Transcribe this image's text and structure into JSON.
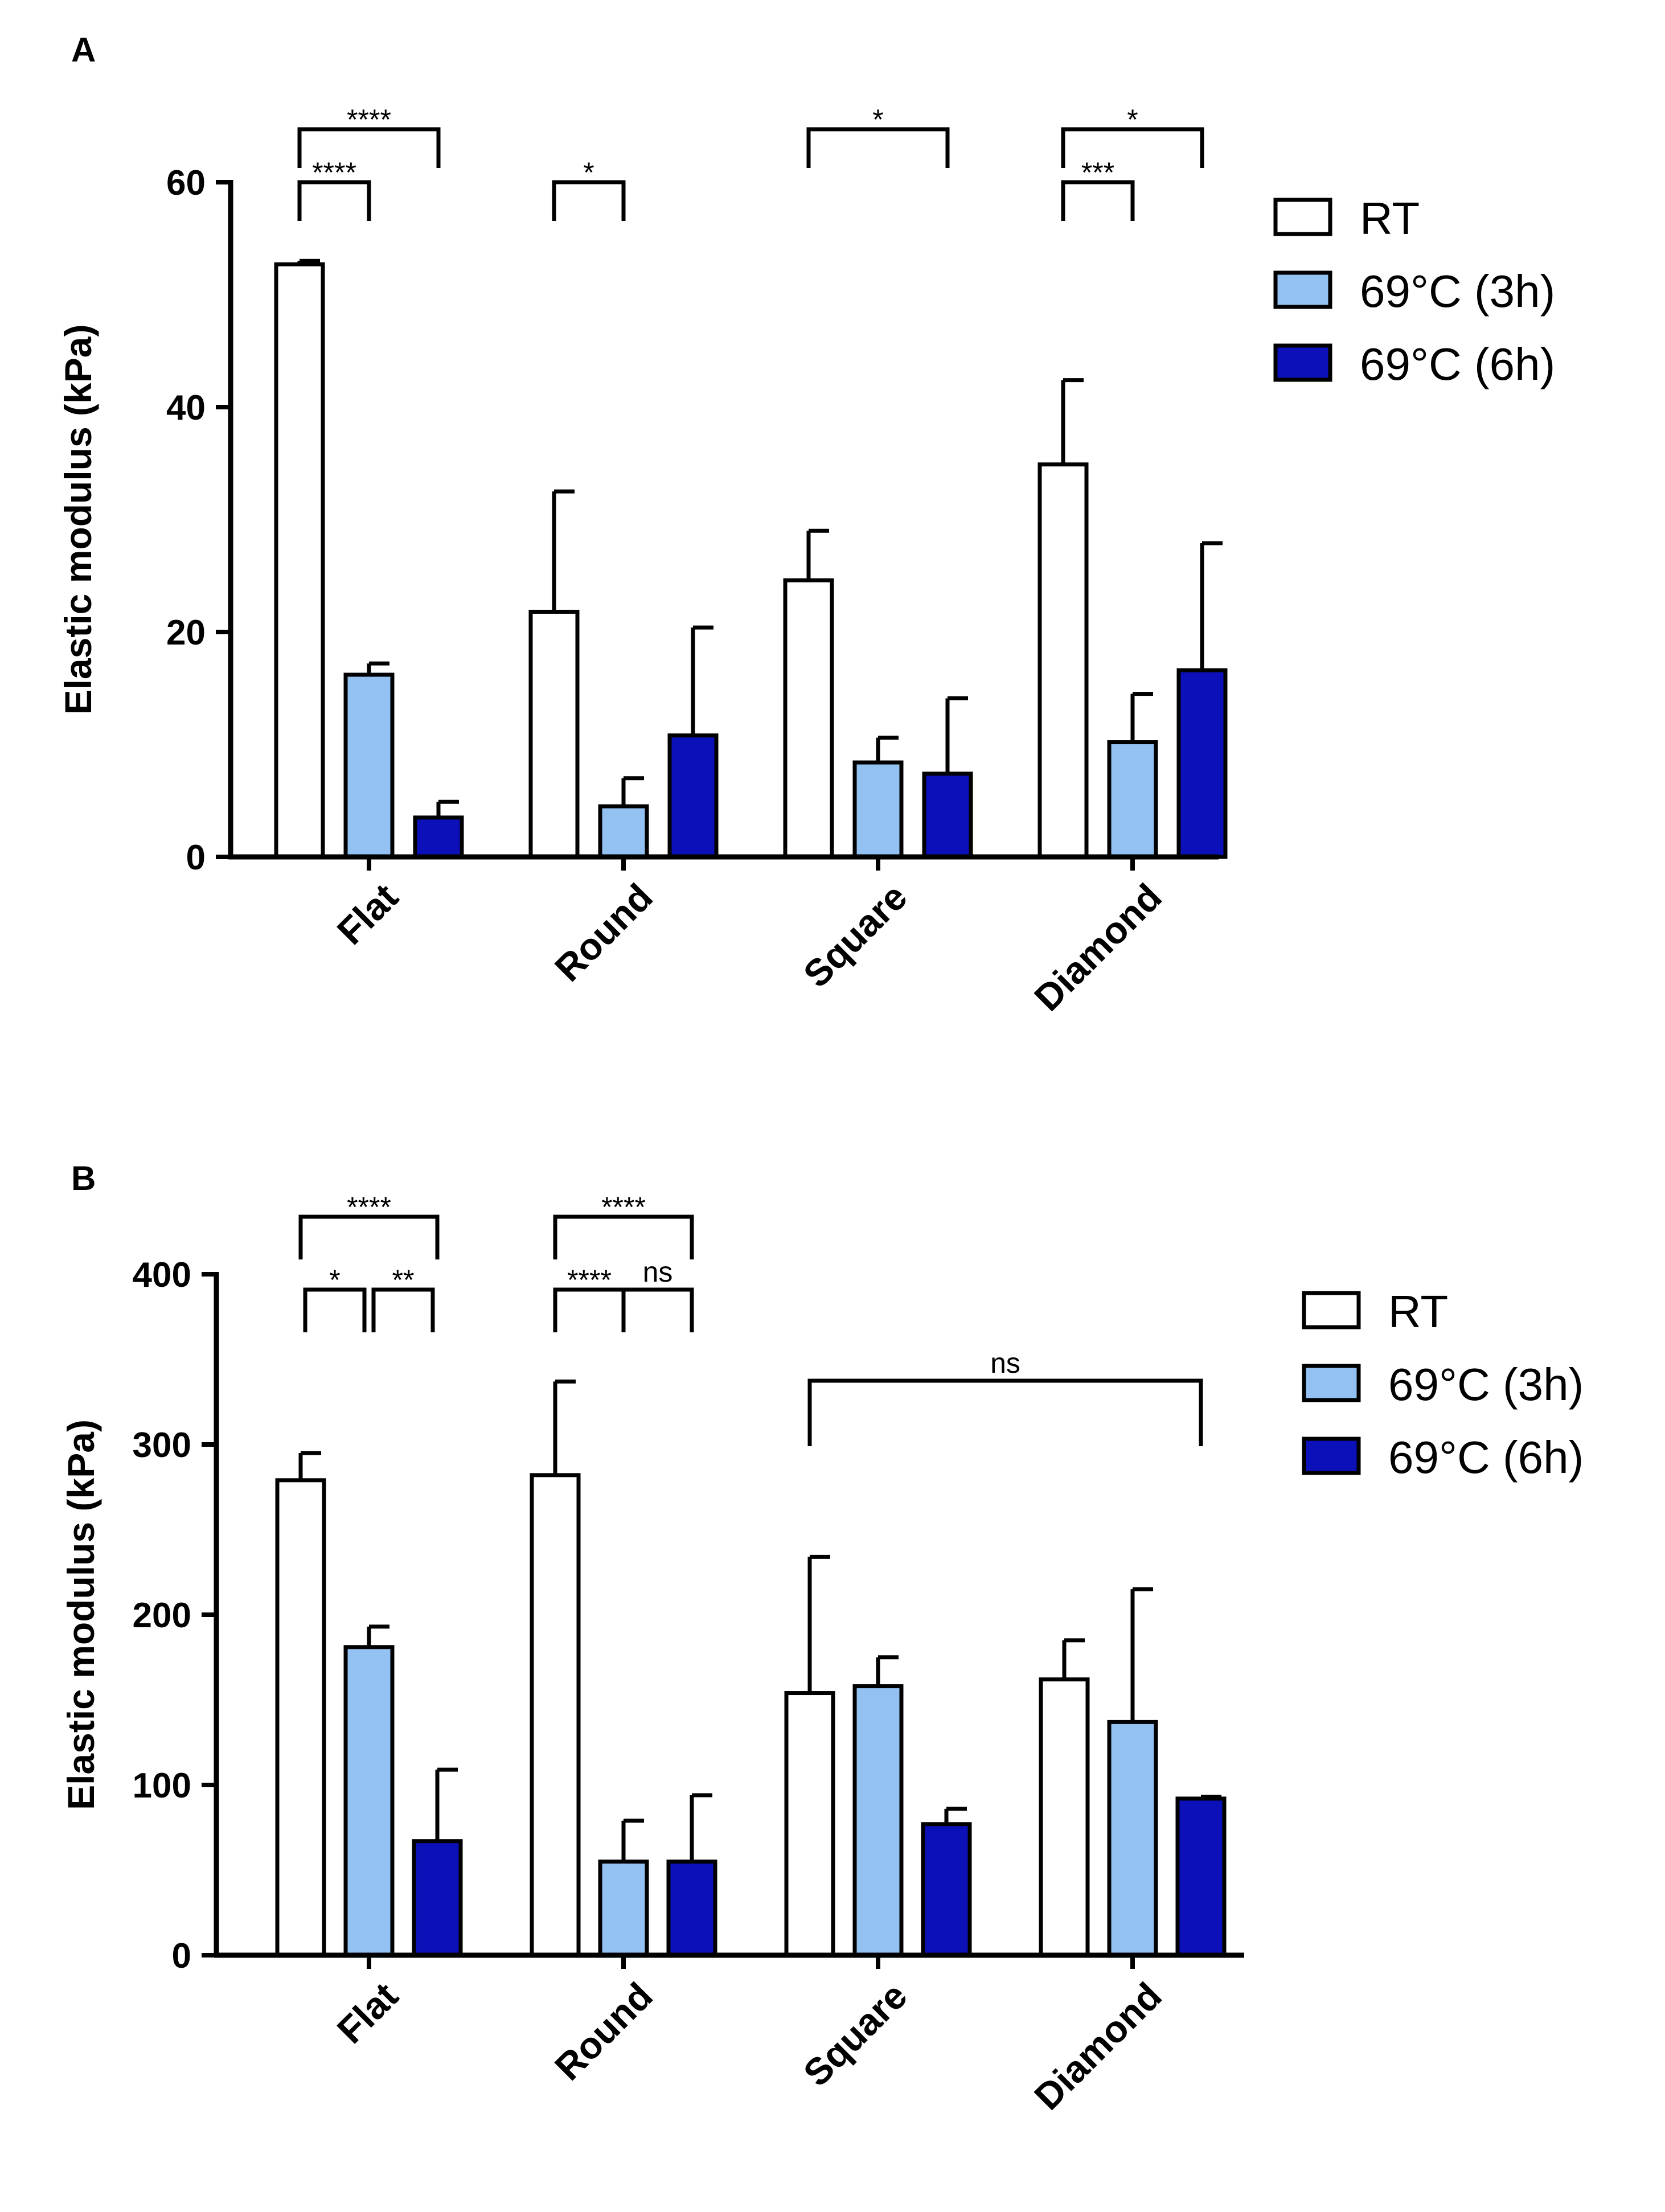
{
  "panels": [
    {
      "letter": "A",
      "ylabel": "Elastic modulus (kPa)",
      "legend": [
        {
          "label": "RT",
          "color": "#ffffff"
        },
        {
          "label": "69°C (3h)",
          "color": "#92c1f2"
        },
        {
          "label": "69°C (6h)",
          "color": "#0c10b8"
        }
      ],
      "significance": [
        {
          "label": "****",
          "group": 0,
          "from": 0,
          "to": 2,
          "tier": 2
        },
        {
          "label": "****",
          "group": 0,
          "from": 0,
          "to": 1,
          "tier": 1
        },
        {
          "label": "*",
          "group": 1,
          "from": 0,
          "to": 1,
          "tier": 1
        },
        {
          "label": "*",
          "group": 2,
          "from": 0,
          "to": 2,
          "tier": 2
        },
        {
          "label": "*",
          "group": 3,
          "from": 0,
          "to": 2,
          "tier": 2
        },
        {
          "label": "***",
          "group": 3,
          "from": 0,
          "to": 1,
          "tier": 1
        }
      ]
    },
    {
      "letter": "B",
      "ylabel": "Elastic modulus (kPa)",
      "legend": [
        {
          "label": "RT",
          "color": "#ffffff"
        },
        {
          "label": "69°C (3h)",
          "color": "#92c1f2"
        },
        {
          "label": "69°C (6h)",
          "color": "#0c10b8"
        }
      ],
      "significance": [
        {
          "label": "****",
          "group": 0,
          "from": 0,
          "to": 2,
          "tier": 2
        },
        {
          "label": "*",
          "group": 0,
          "from": 0,
          "to": 1,
          "tier": 1
        },
        {
          "label": "**",
          "group": 0,
          "from": 1,
          "to": 2,
          "tier": 1
        },
        {
          "label": "****",
          "group": 1,
          "from": 0,
          "to": 2,
          "tier": 2
        },
        {
          "label": "****",
          "group": 1,
          "from": 0,
          "to": 1,
          "tier": 1
        },
        {
          "label": "ns",
          "group": 1,
          "from": 1,
          "to": 2,
          "tier": 1
        },
        {
          "label": "ns",
          "group": 2,
          "from": 0,
          "group_to": 3,
          "to": 2,
          "tier": 0
        }
      ]
    }
  ],
  "chart_data": [
    {
      "type": "bar",
      "ylabel": "Elastic modulus (kPa)",
      "categories": [
        "Flat",
        "Round",
        "Square",
        "Diamond"
      ],
      "ylim": [
        0,
        60
      ],
      "yticks": [
        0,
        20,
        40,
        60
      ],
      "series": [
        {
          "name": "RT",
          "color": "#ffffff",
          "values": [
            52.7,
            21.8,
            24.6,
            34.9
          ],
          "errors": [
            0.3,
            10.7,
            4.4,
            7.5
          ]
        },
        {
          "name": "69°C (3h)",
          "color": "#92c1f2",
          "values": [
            16.2,
            4.5,
            8.4,
            10.2
          ],
          "errors": [
            1.0,
            2.5,
            2.2,
            4.3
          ]
        },
        {
          "name": "69°C (6h)",
          "color": "#0c10b8",
          "values": [
            3.5,
            10.8,
            7.4,
            16.6
          ],
          "errors": [
            1.4,
            9.6,
            6.7,
            11.3
          ]
        }
      ]
    },
    {
      "type": "bar",
      "ylabel": "Elastic modulus (kPa)",
      "categories": [
        "Flat",
        "Round",
        "Square",
        "Diamond"
      ],
      "ylim": [
        0,
        400
      ],
      "yticks": [
        0,
        100,
        200,
        300,
        400
      ],
      "series": [
        {
          "name": "RT",
          "color": "#ffffff",
          "values": [
            279,
            282,
            154,
            162
          ],
          "errors": [
            16,
            55,
            80,
            23
          ]
        },
        {
          "name": "69°C (3h)",
          "color": "#92c1f2",
          "values": [
            181,
            55,
            158,
            137
          ],
          "errors": [
            12,
            24,
            17,
            78
          ]
        },
        {
          "name": "69°C (6h)",
          "color": "#0c10b8",
          "values": [
            67,
            55,
            77,
            92
          ],
          "errors": [
            42,
            39,
            9,
            1
          ]
        }
      ]
    }
  ]
}
